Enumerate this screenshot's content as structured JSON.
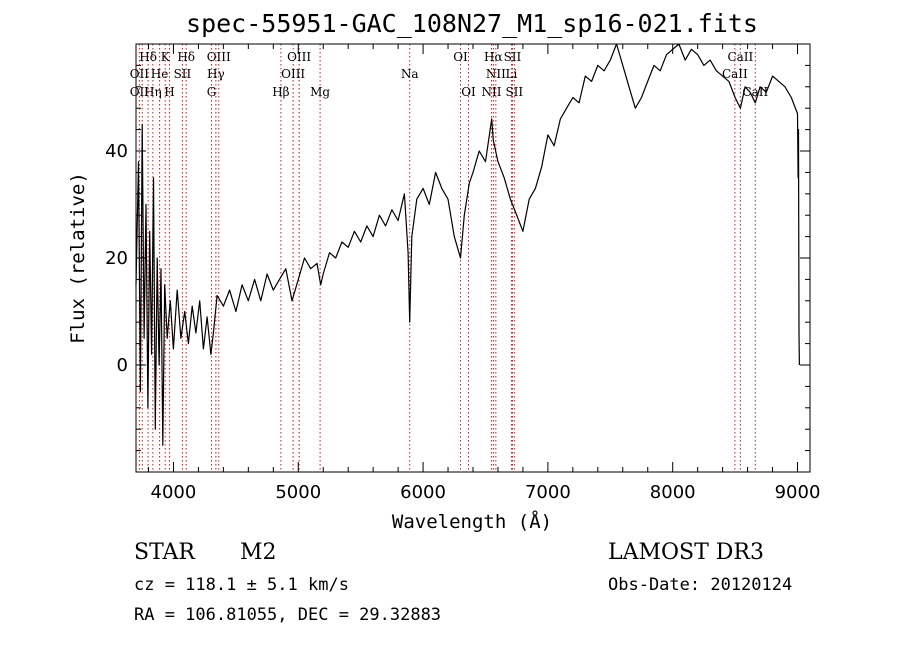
{
  "chart_data": {
    "type": "line",
    "title": "spec-55951-GAC_108N27_M1_sp16-021.fits",
    "xlabel": "Wavelength (Å)",
    "ylabel": "Flux (relative)",
    "xlim": [
      3700,
      9100
    ],
    "ylim": [
      -20,
      60
    ],
    "x_ticks": [
      4000,
      5000,
      6000,
      7000,
      8000,
      9000
    ],
    "y_ticks": [
      0,
      20,
      40
    ],
    "grid": false,
    "series": [
      {
        "name": "spectrum",
        "points": [
          [
            3700,
            15
          ],
          [
            3720,
            38
          ],
          [
            3735,
            -5
          ],
          [
            3750,
            45
          ],
          [
            3765,
            5
          ],
          [
            3780,
            30
          ],
          [
            3795,
            -8
          ],
          [
            3810,
            25
          ],
          [
            3825,
            2
          ],
          [
            3840,
            35
          ],
          [
            3855,
            -12
          ],
          [
            3870,
            20
          ],
          [
            3885,
            0
          ],
          [
            3900,
            18
          ],
          [
            3915,
            -15
          ],
          [
            3930,
            15
          ],
          [
            3950,
            5
          ],
          [
            3975,
            12
          ],
          [
            4000,
            3
          ],
          [
            4030,
            14
          ],
          [
            4060,
            5
          ],
          [
            4090,
            10
          ],
          [
            4120,
            4
          ],
          [
            4150,
            11
          ],
          [
            4180,
            6
          ],
          [
            4210,
            12
          ],
          [
            4240,
            3
          ],
          [
            4270,
            9
          ],
          [
            4300,
            2
          ],
          [
            4320,
            6
          ],
          [
            4350,
            13
          ],
          [
            4400,
            11
          ],
          [
            4450,
            14
          ],
          [
            4500,
            10
          ],
          [
            4550,
            15
          ],
          [
            4600,
            12
          ],
          [
            4650,
            16
          ],
          [
            4700,
            12
          ],
          [
            4750,
            17
          ],
          [
            4800,
            14
          ],
          [
            4850,
            16
          ],
          [
            4900,
            18
          ],
          [
            4950,
            12
          ],
          [
            5000,
            16
          ],
          [
            5050,
            20
          ],
          [
            5100,
            18
          ],
          [
            5150,
            19
          ],
          [
            5180,
            15
          ],
          [
            5200,
            17
          ],
          [
            5250,
            21
          ],
          [
            5300,
            20
          ],
          [
            5350,
            23
          ],
          [
            5400,
            22
          ],
          [
            5450,
            25
          ],
          [
            5500,
            23
          ],
          [
            5550,
            26
          ],
          [
            5600,
            24
          ],
          [
            5650,
            28
          ],
          [
            5700,
            26
          ],
          [
            5750,
            29
          ],
          [
            5800,
            27
          ],
          [
            5850,
            32
          ],
          [
            5880,
            21
          ],
          [
            5893,
            8
          ],
          [
            5910,
            24
          ],
          [
            5950,
            31
          ],
          [
            6000,
            33
          ],
          [
            6050,
            30
          ],
          [
            6100,
            36
          ],
          [
            6150,
            33
          ],
          [
            6200,
            31
          ],
          [
            6250,
            24
          ],
          [
            6300,
            20
          ],
          [
            6330,
            28
          ],
          [
            6370,
            34
          ],
          [
            6400,
            36
          ],
          [
            6450,
            40
          ],
          [
            6500,
            38
          ],
          [
            6550,
            46
          ],
          [
            6563,
            42
          ],
          [
            6600,
            38
          ],
          [
            6650,
            35
          ],
          [
            6700,
            31
          ],
          [
            6750,
            28
          ],
          [
            6800,
            25
          ],
          [
            6850,
            31
          ],
          [
            6900,
            33
          ],
          [
            6950,
            37
          ],
          [
            7000,
            43
          ],
          [
            7050,
            41
          ],
          [
            7100,
            46
          ],
          [
            7150,
            48
          ],
          [
            7200,
            50
          ],
          [
            7250,
            49
          ],
          [
            7300,
            54
          ],
          [
            7350,
            53
          ],
          [
            7400,
            56
          ],
          [
            7450,
            55
          ],
          [
            7500,
            57
          ],
          [
            7550,
            60
          ],
          [
            7600,
            56
          ],
          [
            7650,
            52
          ],
          [
            7700,
            48
          ],
          [
            7750,
            50
          ],
          [
            7800,
            53
          ],
          [
            7850,
            56
          ],
          [
            7900,
            55
          ],
          [
            7950,
            58
          ],
          [
            8000,
            59
          ],
          [
            8050,
            60
          ],
          [
            8100,
            57
          ],
          [
            8150,
            59
          ],
          [
            8200,
            58
          ],
          [
            8250,
            56
          ],
          [
            8300,
            57
          ],
          [
            8350,
            55
          ],
          [
            8400,
            54
          ],
          [
            8450,
            53
          ],
          [
            8500,
            50
          ],
          [
            8542,
            48
          ],
          [
            8580,
            52
          ],
          [
            8620,
            51
          ],
          [
            8662,
            49
          ],
          [
            8700,
            52
          ],
          [
            8750,
            51
          ],
          [
            8800,
            54
          ],
          [
            8850,
            53
          ],
          [
            8900,
            52
          ],
          [
            8950,
            50
          ],
          [
            9000,
            47
          ],
          [
            9005,
            35
          ],
          [
            9008,
            44
          ],
          [
            9012,
            6
          ],
          [
            9015,
            0
          ]
        ]
      }
    ],
    "emission_lines": [
      {
        "label": "Hδ",
        "x": 3797,
        "row": 0
      },
      {
        "label": "K",
        "x": 3934,
        "row": 0
      },
      {
        "label": "Hδ",
        "x": 4102,
        "row": 0
      },
      {
        "label": "OIII",
        "x": 4363,
        "row": 0
      },
      {
        "label": "OIII",
        "x": 5007,
        "row": 0
      },
      {
        "label": "OI",
        "x": 6300,
        "row": 0
      },
      {
        "label": "Hα",
        "x": 6563,
        "row": 0
      },
      {
        "label": "SII",
        "x": 6716,
        "row": 0
      },
      {
        "label": "CaII",
        "x": 8542,
        "row": 0
      },
      {
        "label": "OII",
        "x": 3727,
        "row": 1
      },
      {
        "label": "He",
        "x": 3889,
        "row": 1
      },
      {
        "label": "SII",
        "x": 4072,
        "row": 1
      },
      {
        "label": "Hγ",
        "x": 4340,
        "row": 1
      },
      {
        "label": "OIII",
        "x": 4959,
        "row": 1
      },
      {
        "label": "Na",
        "x": 5893,
        "row": 1
      },
      {
        "label": "NII",
        "x": 6583,
        "row": 1
      },
      {
        "label": "Li",
        "x": 6708,
        "row": 1
      },
      {
        "label": "CaII",
        "x": 8498,
        "row": 1
      },
      {
        "label": "OII",
        "x": 3727,
        "row": 2
      },
      {
        "label": "Hη",
        "x": 3835,
        "row": 2
      },
      {
        "label": "H",
        "x": 3968,
        "row": 2
      },
      {
        "label": "G",
        "x": 4305,
        "row": 2
      },
      {
        "label": "Hβ",
        "x": 4861,
        "row": 2
      },
      {
        "label": "Mg",
        "x": 5175,
        "row": 2
      },
      {
        "label": "OI",
        "x": 6364,
        "row": 2
      },
      {
        "label": "NII",
        "x": 6548,
        "row": 2
      },
      {
        "label": "SII",
        "x": 6731,
        "row": 2
      },
      {
        "label": "CaII",
        "x": 8662,
        "row": 2
      }
    ],
    "dotted_lines_x": [
      3727,
      3750,
      3797,
      3835,
      3889,
      3934,
      3968,
      4072,
      4102,
      4305,
      4340,
      4363,
      4861,
      4959,
      5007,
      5175,
      5893,
      6300,
      6364,
      6548,
      6563,
      6583,
      6708,
      6716,
      6731,
      8498,
      8542,
      8662
    ]
  },
  "info": {
    "object_class": "STAR",
    "subclass": "M2",
    "survey": "LAMOST DR3",
    "cz": "cz = 118.1 ± 5.1 km/s",
    "obs_date": "Obs-Date: 20120124",
    "coords": "RA = 106.81055, DEC =  29.32883"
  },
  "colors": {
    "line": "#000000",
    "marker_line": "#b22222",
    "background": "#ffffff"
  }
}
